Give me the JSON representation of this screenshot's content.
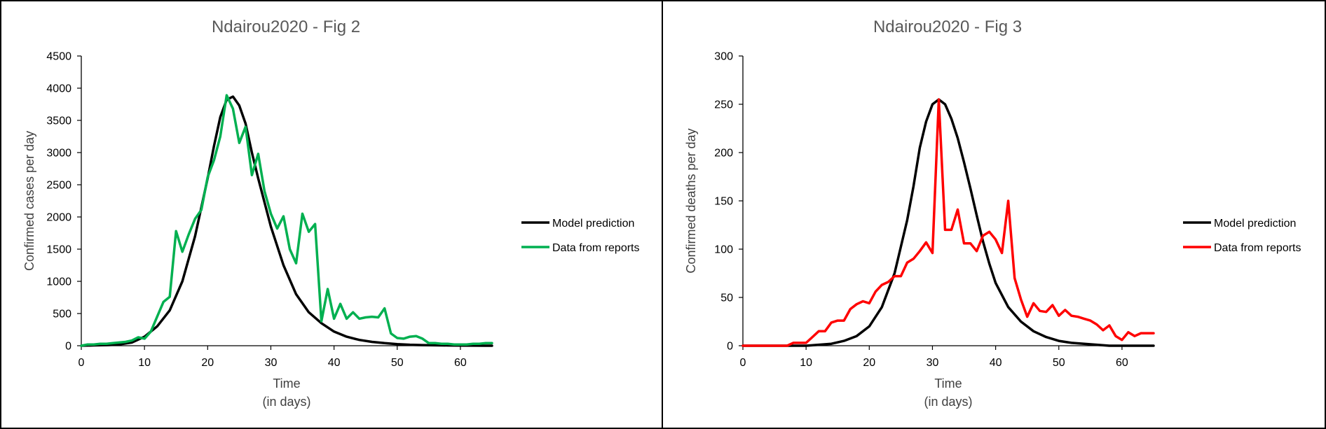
{
  "chart_data": [
    {
      "type": "line",
      "title": "Ndairou2020 - Fig 2",
      "xlabel": [
        "Time",
        "(in days)"
      ],
      "ylabel": "Confirmed cases per day",
      "xlim": [
        0,
        65
      ],
      "ylim": [
        0,
        4500
      ],
      "xticks": [
        0,
        10,
        20,
        30,
        40,
        50,
        60
      ],
      "yticks": [
        0,
        500,
        1000,
        1500,
        2000,
        2500,
        3000,
        3500,
        4000,
        4500
      ],
      "grid": false,
      "legend_position": "right",
      "series": [
        {
          "name": "Model prediction",
          "color": "#000000",
          "x": [
            0,
            2,
            4,
            6,
            8,
            10,
            12,
            14,
            16,
            18,
            20,
            21,
            22,
            23,
            24,
            25,
            26,
            27,
            28,
            30,
            32,
            34,
            36,
            38,
            40,
            42,
            44,
            46,
            48,
            50,
            52,
            54,
            56,
            58,
            60,
            62,
            64,
            65
          ],
          "y": [
            0,
            5,
            10,
            20,
            50,
            140,
            300,
            550,
            1000,
            1700,
            2600,
            3100,
            3550,
            3820,
            3870,
            3730,
            3450,
            3000,
            2600,
            1850,
            1250,
            800,
            520,
            350,
            220,
            140,
            90,
            60,
            40,
            25,
            15,
            10,
            6,
            4,
            2,
            1,
            0,
            0
          ]
        },
        {
          "name": "Data from reports",
          "color": "#00b050",
          "x": [
            0,
            1,
            2,
            3,
            4,
            5,
            6,
            7,
            8,
            9,
            10,
            11,
            12,
            13,
            14,
            15,
            16,
            17,
            18,
            19,
            20,
            21,
            22,
            23,
            24,
            25,
            26,
            27,
            28,
            29,
            30,
            31,
            32,
            33,
            34,
            35,
            36,
            37,
            38,
            39,
            40,
            41,
            42,
            43,
            44,
            45,
            46,
            47,
            48,
            49,
            50,
            51,
            52,
            53,
            54,
            55,
            56,
            57,
            58,
            59,
            60,
            61,
            62,
            63,
            64,
            65
          ],
          "y": [
            0,
            20,
            20,
            30,
            30,
            40,
            50,
            60,
            80,
            130,
            110,
            220,
            450,
            680,
            760,
            1780,
            1460,
            1730,
            1970,
            2110,
            2620,
            2880,
            3250,
            3890,
            3680,
            3150,
            3400,
            2650,
            2980,
            2400,
            2050,
            1820,
            2010,
            1500,
            1280,
            2050,
            1770,
            1890,
            380,
            880,
            420,
            650,
            420,
            520,
            420,
            440,
            450,
            440,
            580,
            190,
            120,
            110,
            140,
            150,
            110,
            40,
            40,
            30,
            30,
            20,
            20,
            20,
            30,
            30,
            40,
            40
          ]
        }
      ]
    },
    {
      "type": "line",
      "title": "Ndairou2020 - Fig 3",
      "xlabel": [
        "Time",
        "(in days)"
      ],
      "ylabel": "Confirmed deaths per day",
      "xlim": [
        0,
        65
      ],
      "ylim": [
        0,
        300
      ],
      "xticks": [
        0,
        10,
        20,
        30,
        40,
        50,
        60
      ],
      "yticks": [
        0,
        50,
        100,
        150,
        200,
        250,
        300
      ],
      "grid": false,
      "legend_position": "right",
      "series": [
        {
          "name": "Model prediction",
          "color": "#000000",
          "x": [
            0,
            4,
            8,
            10,
            12,
            14,
            16,
            18,
            20,
            22,
            24,
            26,
            27,
            28,
            29,
            30,
            31,
            32,
            33,
            34,
            35,
            36,
            37,
            38,
            39,
            40,
            42,
            44,
            46,
            48,
            50,
            52,
            54,
            56,
            58,
            60,
            62,
            64,
            65
          ],
          "y": [
            0,
            0,
            0,
            0,
            1,
            2,
            5,
            10,
            20,
            40,
            75,
            130,
            165,
            205,
            232,
            250,
            255,
            250,
            235,
            215,
            190,
            163,
            135,
            108,
            85,
            65,
            40,
            25,
            15,
            9,
            5,
            3,
            2,
            1,
            0,
            0,
            0,
            0,
            0
          ]
        },
        {
          "name": "Data from reports",
          "color": "#ff0000",
          "x": [
            0,
            1,
            2,
            3,
            4,
            5,
            6,
            7,
            8,
            9,
            10,
            11,
            12,
            13,
            14,
            15,
            16,
            17,
            18,
            19,
            20,
            21,
            22,
            23,
            24,
            25,
            26,
            27,
            28,
            29,
            30,
            31,
            32,
            33,
            34,
            35,
            36,
            37,
            38,
            39,
            40,
            41,
            42,
            43,
            44,
            45,
            46,
            47,
            48,
            49,
            50,
            51,
            52,
            53,
            54,
            55,
            56,
            57,
            58,
            59,
            60,
            61,
            62,
            63,
            64,
            65
          ],
          "y": [
            0,
            0,
            0,
            0,
            0,
            0,
            0,
            0,
            3,
            3,
            3,
            9,
            15,
            15,
            24,
            26,
            26,
            38,
            43,
            46,
            44,
            56,
            63,
            66,
            72,
            72,
            86,
            90,
            98,
            107,
            96,
            255,
            120,
            120,
            141,
            106,
            106,
            98,
            114,
            118,
            110,
            96,
            150,
            70,
            48,
            30,
            44,
            36,
            35,
            42,
            31,
            37,
            31,
            30,
            28,
            26,
            22,
            16,
            21,
            10,
            6,
            14,
            10,
            13,
            13,
            13
          ]
        }
      ]
    }
  ]
}
